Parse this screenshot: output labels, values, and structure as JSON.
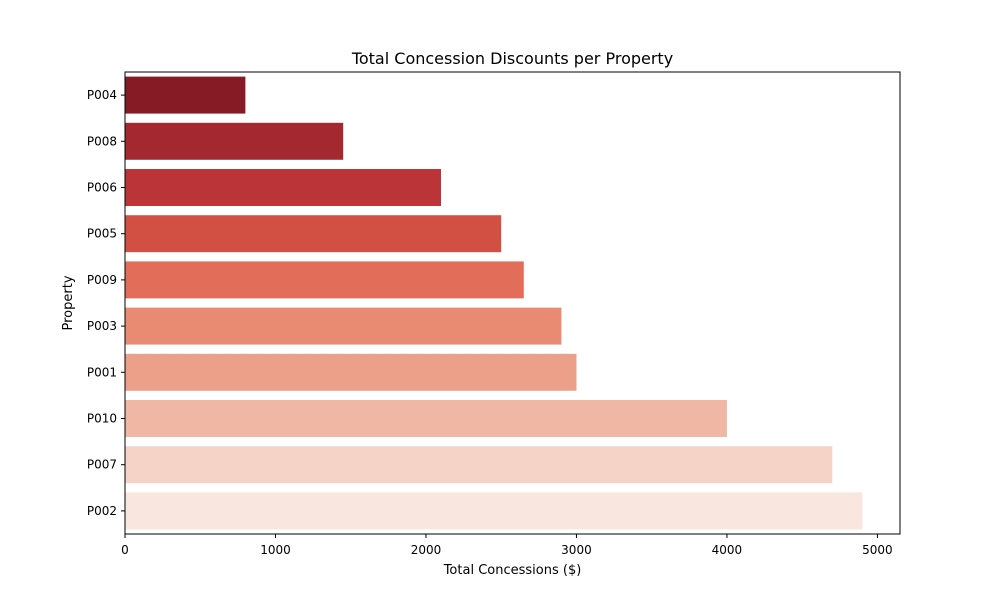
{
  "chart_data": {
    "type": "bar",
    "orientation": "horizontal",
    "title": "Total Concession Discounts per Property",
    "xlabel": "Total Concessions ($)",
    "ylabel": "Property",
    "categories": [
      "P004",
      "P008",
      "P006",
      "P005",
      "P009",
      "P003",
      "P001",
      "P010",
      "P007",
      "P002"
    ],
    "values": [
      800,
      1450,
      2100,
      2500,
      2650,
      2900,
      3000,
      4000,
      4700,
      4900
    ],
    "colors": [
      "#861b25",
      "#a3282f",
      "#bb3438",
      "#d24f44",
      "#e26e59",
      "#e98a72",
      "#eca08a",
      "#f0b8a4",
      "#f5d3c6",
      "#f9e6df"
    ],
    "xlim": [
      0,
      5150
    ],
    "xticks": [
      0,
      1000,
      2000,
      3000,
      4000,
      5000
    ],
    "grid": false,
    "legend": "none"
  }
}
